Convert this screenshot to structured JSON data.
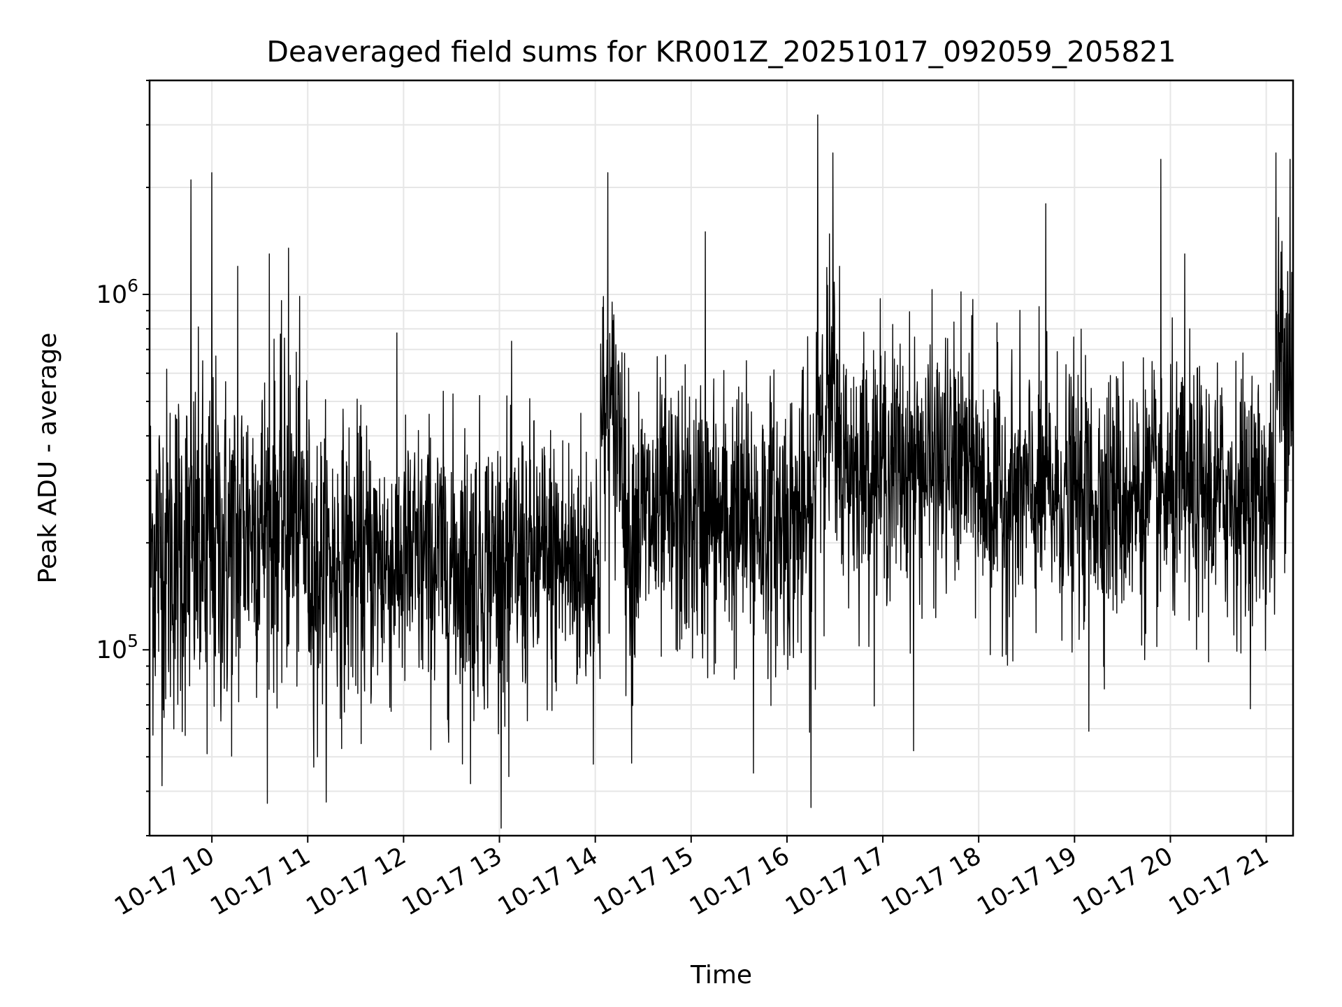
{
  "chart_data": {
    "type": "line",
    "title": "Deaveraged field sums for KR001Z_20251017_092059_205821",
    "xlabel": "Time",
    "ylabel": "Peak ADU - average",
    "yscale": "log",
    "ylim": [
      30000,
      4000000
    ],
    "xlim_hours": [
      9.35,
      21.28
    ],
    "grid": true,
    "x_ticks": [
      {
        "hour": 10,
        "label": "10-17 10"
      },
      {
        "hour": 11,
        "label": "10-17 11"
      },
      {
        "hour": 12,
        "label": "10-17 12"
      },
      {
        "hour": 13,
        "label": "10-17 13"
      },
      {
        "hour": 14,
        "label": "10-17 14"
      },
      {
        "hour": 15,
        "label": "10-17 15"
      },
      {
        "hour": 16,
        "label": "10-17 16"
      },
      {
        "hour": 17,
        "label": "10-17 17"
      },
      {
        "hour": 18,
        "label": "10-17 18"
      },
      {
        "hour": 19,
        "label": "10-17 19"
      },
      {
        "hour": 20,
        "label": "10-17 20"
      },
      {
        "hour": 21,
        "label": "10-17 21"
      }
    ],
    "y_ticks": [
      {
        "value": 100000,
        "base": "10",
        "exp": "5"
      },
      {
        "value": 1000000,
        "base": "10",
        "exp": "6"
      }
    ],
    "series": [
      {
        "name": "Peak ADU - average",
        "color": "#000000",
        "baseline_segments": [
          {
            "start_hour": 9.35,
            "end_hour": 10.3,
            "median": 190000,
            "spread": 0.42
          },
          {
            "start_hour": 10.3,
            "end_hour": 11.0,
            "median": 230000,
            "spread": 0.38
          },
          {
            "start_hour": 11.0,
            "end_hour": 14.05,
            "median": 175000,
            "spread": 0.33
          },
          {
            "start_hour": 14.05,
            "end_hour": 14.3,
            "median": 420000,
            "spread": 0.33
          },
          {
            "start_hour": 14.3,
            "end_hour": 16.3,
            "median": 230000,
            "spread": 0.33
          },
          {
            "start_hour": 16.3,
            "end_hour": 16.5,
            "median": 500000,
            "spread": 0.35
          },
          {
            "start_hour": 16.5,
            "end_hour": 18.0,
            "median": 330000,
            "spread": 0.3
          },
          {
            "start_hour": 18.0,
            "end_hour": 21.1,
            "median": 270000,
            "spread": 0.3
          },
          {
            "start_hour": 21.1,
            "end_hour": 21.28,
            "median": 650000,
            "spread": 0.38
          }
        ],
        "notable_points": [
          {
            "hour": 9.78,
            "value": 2100000
          },
          {
            "hour": 9.95,
            "value": 51000
          },
          {
            "hour": 10.0,
            "value": 2200000
          },
          {
            "hour": 10.27,
            "value": 1200000
          },
          {
            "hour": 10.6,
            "value": 1300000
          },
          {
            "hour": 10.8,
            "value": 1350000
          },
          {
            "hour": 11.1,
            "value": 50000
          },
          {
            "hour": 12.7,
            "value": 42000
          },
          {
            "hour": 13.1,
            "value": 44000
          },
          {
            "hour": 14.13,
            "value": 2200000
          },
          {
            "hour": 14.38,
            "value": 48000
          },
          {
            "hour": 15.15,
            "value": 1500000
          },
          {
            "hour": 15.65,
            "value": 45000
          },
          {
            "hour": 16.25,
            "value": 36000
          },
          {
            "hour": 16.32,
            "value": 3200000
          },
          {
            "hour": 16.48,
            "value": 2500000
          },
          {
            "hour": 16.55,
            "value": 1200000
          },
          {
            "hour": 17.32,
            "value": 52000
          },
          {
            "hour": 18.7,
            "value": 1800000
          },
          {
            "hour": 19.15,
            "value": 59000
          },
          {
            "hour": 19.9,
            "value": 2400000
          },
          {
            "hour": 20.15,
            "value": 1300000
          },
          {
            "hour": 21.1,
            "value": 2500000
          },
          {
            "hour": 21.25,
            "value": 2400000
          }
        ]
      }
    ]
  }
}
